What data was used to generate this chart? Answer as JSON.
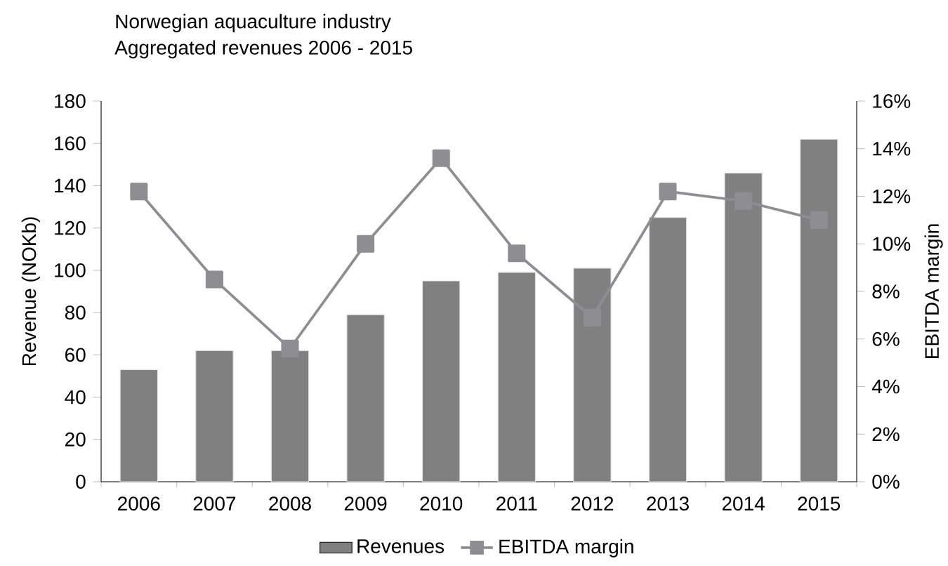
{
  "chart_data": {
    "type": "bar",
    "title": "Norwegian aquaculture industry",
    "subtitle": "Aggregated revenues 2006 - 2015",
    "ylabel": "Revenue (NOKb)",
    "y2label": "EBITDA margin",
    "categories": [
      "2006",
      "2007",
      "2008",
      "2009",
      "2010",
      "2011",
      "2012",
      "2013",
      "2014",
      "2015"
    ],
    "series": [
      {
        "name": "Revenues",
        "color": "#808080",
        "values": [
          53,
          62,
          62,
          79,
          95,
          99,
          101,
          125,
          146,
          162
        ]
      },
      {
        "name": "EBITDA margin",
        "type": "line",
        "axis": "y2",
        "color": "#8e8e92",
        "values": [
          12.2,
          8.5,
          5.6,
          10.0,
          13.6,
          9.6,
          6.9,
          12.2,
          11.8,
          11.0
        ]
      }
    ],
    "ylim": [
      0,
      180
    ],
    "yticks": [
      0,
      20,
      40,
      60,
      80,
      100,
      120,
      140,
      160,
      180
    ],
    "y2lim": [
      0,
      16
    ],
    "y2ticks": [
      {
        "value": 0,
        "label": "0%"
      },
      {
        "value": 2,
        "label": "2%"
      },
      {
        "value": 4,
        "label": "4%"
      },
      {
        "value": 6,
        "label": "6%"
      },
      {
        "value": 8,
        "label": "8%"
      },
      {
        "value": 10,
        "label": "10%"
      },
      {
        "value": 12,
        "label": "12%"
      },
      {
        "value": 14,
        "label": "14%"
      },
      {
        "value": 16,
        "label": "16%"
      }
    ],
    "legend": "bottom",
    "marker": "square",
    "line_style": "solid",
    "grid": false
  }
}
